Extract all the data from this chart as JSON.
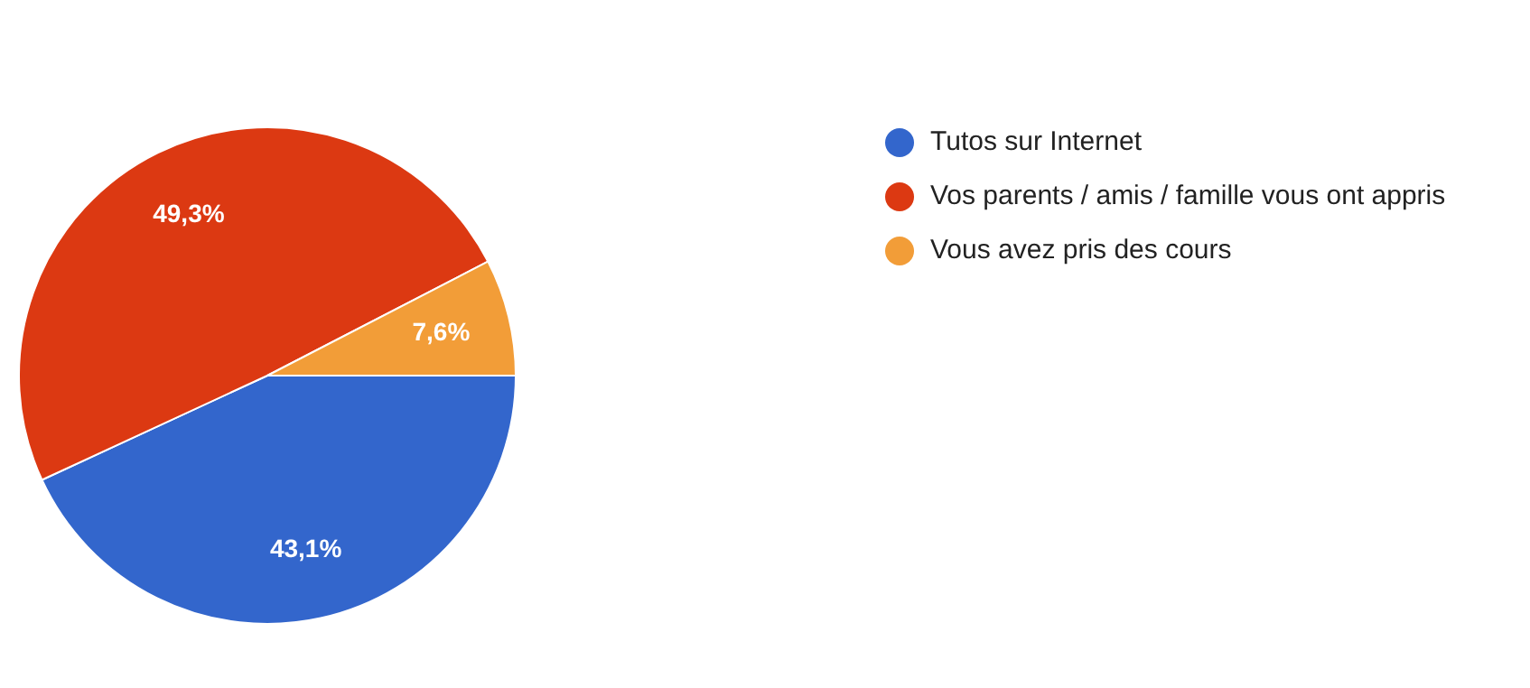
{
  "chart_data": {
    "type": "pie",
    "categories": [
      "Tutos sur Internet",
      "Vos parents / amis / famille vous ont appris",
      "Vous avez pris des cours"
    ],
    "values": [
      43.1,
      49.3,
      7.6
    ],
    "colors": [
      "#3366cc",
      "#dc3912",
      "#f29d38"
    ],
    "value_labels": [
      "43,1%",
      "49,3%",
      "7,6%"
    ],
    "legend": "right"
  }
}
